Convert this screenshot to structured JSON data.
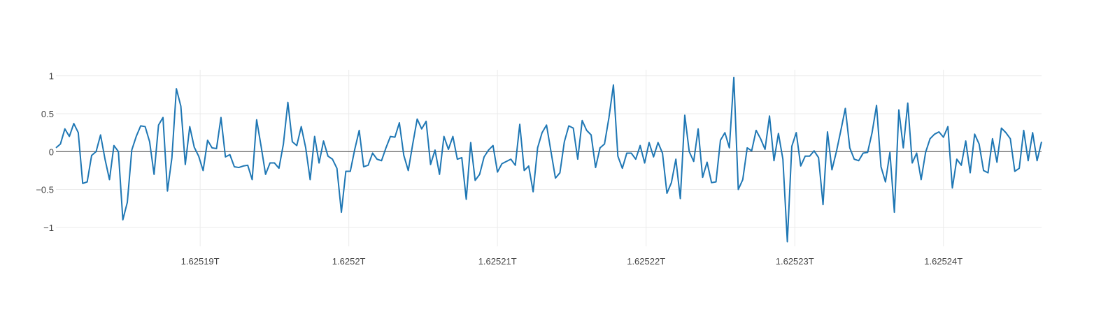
{
  "colors": {
    "background": "#ffffff",
    "series": "#1f77b4",
    "grid": "#ebebeb",
    "zero_line": "#444444",
    "tick_text": "#444444"
  },
  "chart_data": {
    "type": "line",
    "title": "",
    "xlabel": "",
    "ylabel": "",
    "grid": true,
    "legend": "none",
    "xlim": [
      1625180300000,
      1625246600000
    ],
    "ylim": [
      -1.25,
      1.08
    ],
    "x_ticks": [
      {
        "value": 1625190000000,
        "label": "1.62519T"
      },
      {
        "value": 1625200000000,
        "label": "1.6252T"
      },
      {
        "value": 1625210000000,
        "label": "1.62521T"
      },
      {
        "value": 1625220000000,
        "label": "1.62522T"
      },
      {
        "value": 1625230000000,
        "label": "1.62523T"
      },
      {
        "value": 1625240000000,
        "label": "1.62524T"
      }
    ],
    "y_ticks": [
      {
        "value": 1,
        "label": "1"
      },
      {
        "value": 0.5,
        "label": "0.5"
      },
      {
        "value": 0,
        "label": "0"
      },
      {
        "value": -0.5,
        "label": "−0.5"
      },
      {
        "value": -1,
        "label": "−1"
      }
    ],
    "series": [
      {
        "x_start": 1625180300000,
        "x_step": 300000,
        "values": [
          0.05,
          0.1,
          0.3,
          0.2,
          0.37,
          0.25,
          -0.42,
          -0.4,
          -0.05,
          0.0,
          0.22,
          -0.1,
          -0.37,
          0.08,
          0.0,
          -0.9,
          -0.67,
          0.02,
          0.2,
          0.34,
          0.33,
          0.13,
          -0.3,
          0.35,
          0.45,
          -0.52,
          -0.08,
          0.83,
          0.6,
          -0.17,
          0.33,
          0.06,
          -0.06,
          -0.25,
          0.15,
          0.05,
          0.04,
          0.45,
          -0.07,
          -0.04,
          -0.2,
          -0.21,
          -0.19,
          -0.18,
          -0.37,
          0.42,
          0.07,
          -0.3,
          -0.15,
          -0.15,
          -0.22,
          0.1,
          0.65,
          0.13,
          0.08,
          0.33,
          0.05,
          -0.37,
          0.2,
          -0.15,
          0.14,
          -0.06,
          -0.1,
          -0.22,
          -0.8,
          -0.26,
          -0.26,
          0.03,
          0.28,
          -0.2,
          -0.18,
          -0.02,
          -0.1,
          -0.12,
          0.05,
          0.2,
          0.19,
          0.38,
          -0.05,
          -0.25,
          0.1,
          0.43,
          0.3,
          0.4,
          -0.17,
          0.02,
          -0.3,
          0.2,
          0.03,
          0.2,
          -0.1,
          -0.08,
          -0.63,
          0.12,
          -0.38,
          -0.3,
          -0.07,
          0.02,
          0.08,
          -0.27,
          -0.16,
          -0.13,
          -0.1,
          -0.18,
          0.36,
          -0.25,
          -0.19,
          -0.53,
          0.05,
          0.25,
          0.35,
          0.0,
          -0.35,
          -0.28,
          0.13,
          0.34,
          0.31,
          -0.1,
          0.41,
          0.28,
          0.22,
          -0.21,
          0.05,
          0.1,
          0.45,
          0.88,
          -0.06,
          -0.22,
          -0.02,
          -0.02,
          -0.1,
          0.08,
          -0.15,
          0.12,
          -0.07,
          0.12,
          -0.02,
          -0.55,
          -0.41,
          -0.1,
          -0.62,
          0.48,
          0.0,
          -0.13,
          0.3,
          -0.34,
          -0.14,
          -0.41,
          -0.4,
          0.15,
          0.25,
          0.05,
          0.98,
          -0.5,
          -0.37,
          0.05,
          0.01,
          0.28,
          0.17,
          0.03,
          0.47,
          -0.12,
          0.24,
          -0.1,
          -1.19,
          0.07,
          0.25,
          -0.19,
          -0.06,
          -0.06,
          0.01,
          -0.08,
          -0.7,
          0.26,
          -0.24,
          0.0,
          0.28,
          0.57,
          0.05,
          -0.1,
          -0.12,
          -0.02,
          -0.01,
          0.25,
          0.61,
          -0.2,
          -0.4,
          -0.01,
          -0.8,
          0.55,
          0.05,
          0.64,
          -0.15,
          -0.02,
          -0.37,
          -0.01,
          0.17,
          0.23,
          0.26,
          0.19,
          0.33,
          -0.48,
          -0.1,
          -0.18,
          0.14,
          -0.28,
          0.23,
          0.1,
          -0.25,
          -0.28,
          0.17,
          -0.14,
          0.31,
          0.25,
          0.17,
          -0.26,
          -0.22,
          0.28,
          -0.12,
          0.25,
          -0.12,
          0.13
        ]
      }
    ]
  }
}
